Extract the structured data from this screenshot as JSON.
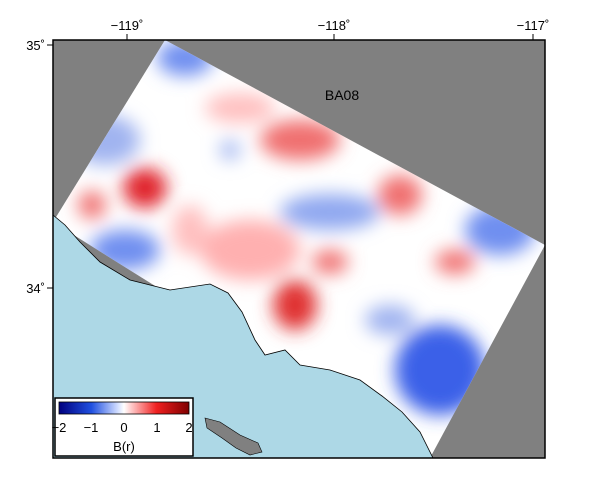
{
  "map": {
    "label": "BA08",
    "x_ticks": [
      "−119˚",
      "−118˚",
      "−117˚"
    ],
    "y_ticks": [
      "35˚",
      "34˚"
    ],
    "colors": {
      "land": "#808080",
      "sea": "#add8e6",
      "positive": "#c00000",
      "negative": "#0000c0"
    }
  },
  "colorbar": {
    "label": "B(r)",
    "ticks": [
      "−2",
      "−1",
      "0",
      "1",
      "2"
    ],
    "range": [
      -2,
      2
    ]
  }
}
